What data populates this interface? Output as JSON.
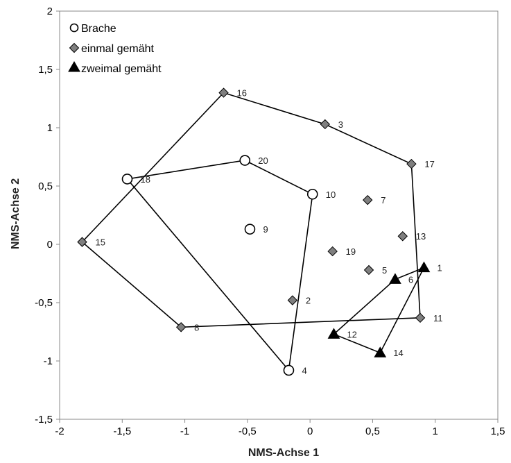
{
  "chart_data": {
    "type": "scatter",
    "xlabel": "NMS-Achse 1",
    "ylabel": "NMS-Achse 2",
    "xlim": [
      -2,
      1.5
    ],
    "ylim": [
      -1.5,
      2
    ],
    "x_ticks": [
      "-2",
      "-1,5",
      "-1",
      "-0,5",
      "0",
      "0,5",
      "1",
      "1,5"
    ],
    "y_ticks": [
      "-1,5",
      "-1",
      "-0,5",
      "0",
      "0,5",
      "1",
      "1,5",
      "2"
    ],
    "grid": false,
    "legend_position": "top-left",
    "series": [
      {
        "name": "Brache",
        "marker": "circle-open",
        "color": "#000000",
        "points": [
          {
            "label": "4",
            "x": -0.17,
            "y": -1.08
          },
          {
            "label": "9",
            "x": -0.48,
            "y": 0.13
          },
          {
            "label": "10",
            "x": 0.02,
            "y": 0.43
          },
          {
            "label": "18",
            "x": -1.46,
            "y": 0.56
          },
          {
            "label": "20",
            "x": -0.52,
            "y": 0.72
          }
        ],
        "hull": [
          "18",
          "20",
          "10",
          "4"
        ]
      },
      {
        "name": "einmal gemäht",
        "marker": "diamond",
        "color": "#7f7f7f",
        "points": [
          {
            "label": "2",
            "x": -0.14,
            "y": -0.48
          },
          {
            "label": "3",
            "x": 0.12,
            "y": 1.03
          },
          {
            "label": "5",
            "x": 0.47,
            "y": -0.22
          },
          {
            "label": "7",
            "x": 0.46,
            "y": 0.38
          },
          {
            "label": "8",
            "x": -1.03,
            "y": -0.71
          },
          {
            "label": "11",
            "x": 0.88,
            "y": -0.63
          },
          {
            "label": "13",
            "x": 0.74,
            "y": 0.07
          },
          {
            "label": "15",
            "x": -1.82,
            "y": 0.02
          },
          {
            "label": "16",
            "x": -0.69,
            "y": 1.3
          },
          {
            "label": "17",
            "x": 0.81,
            "y": 0.69
          },
          {
            "label": "19",
            "x": 0.18,
            "y": -0.06
          }
        ],
        "hull": [
          "15",
          "16",
          "3",
          "17",
          "11",
          "8"
        ]
      },
      {
        "name": "zweimal gemäht",
        "marker": "triangle",
        "color": "#000000",
        "points": [
          {
            "label": "1",
            "x": 0.91,
            "y": -0.2
          },
          {
            "label": "6",
            "x": 0.68,
            "y": -0.3
          },
          {
            "label": "12",
            "x": 0.19,
            "y": -0.77
          },
          {
            "label": "14",
            "x": 0.56,
            "y": -0.93
          }
        ],
        "hull": [
          "1",
          "6",
          "12",
          "14"
        ]
      }
    ]
  }
}
